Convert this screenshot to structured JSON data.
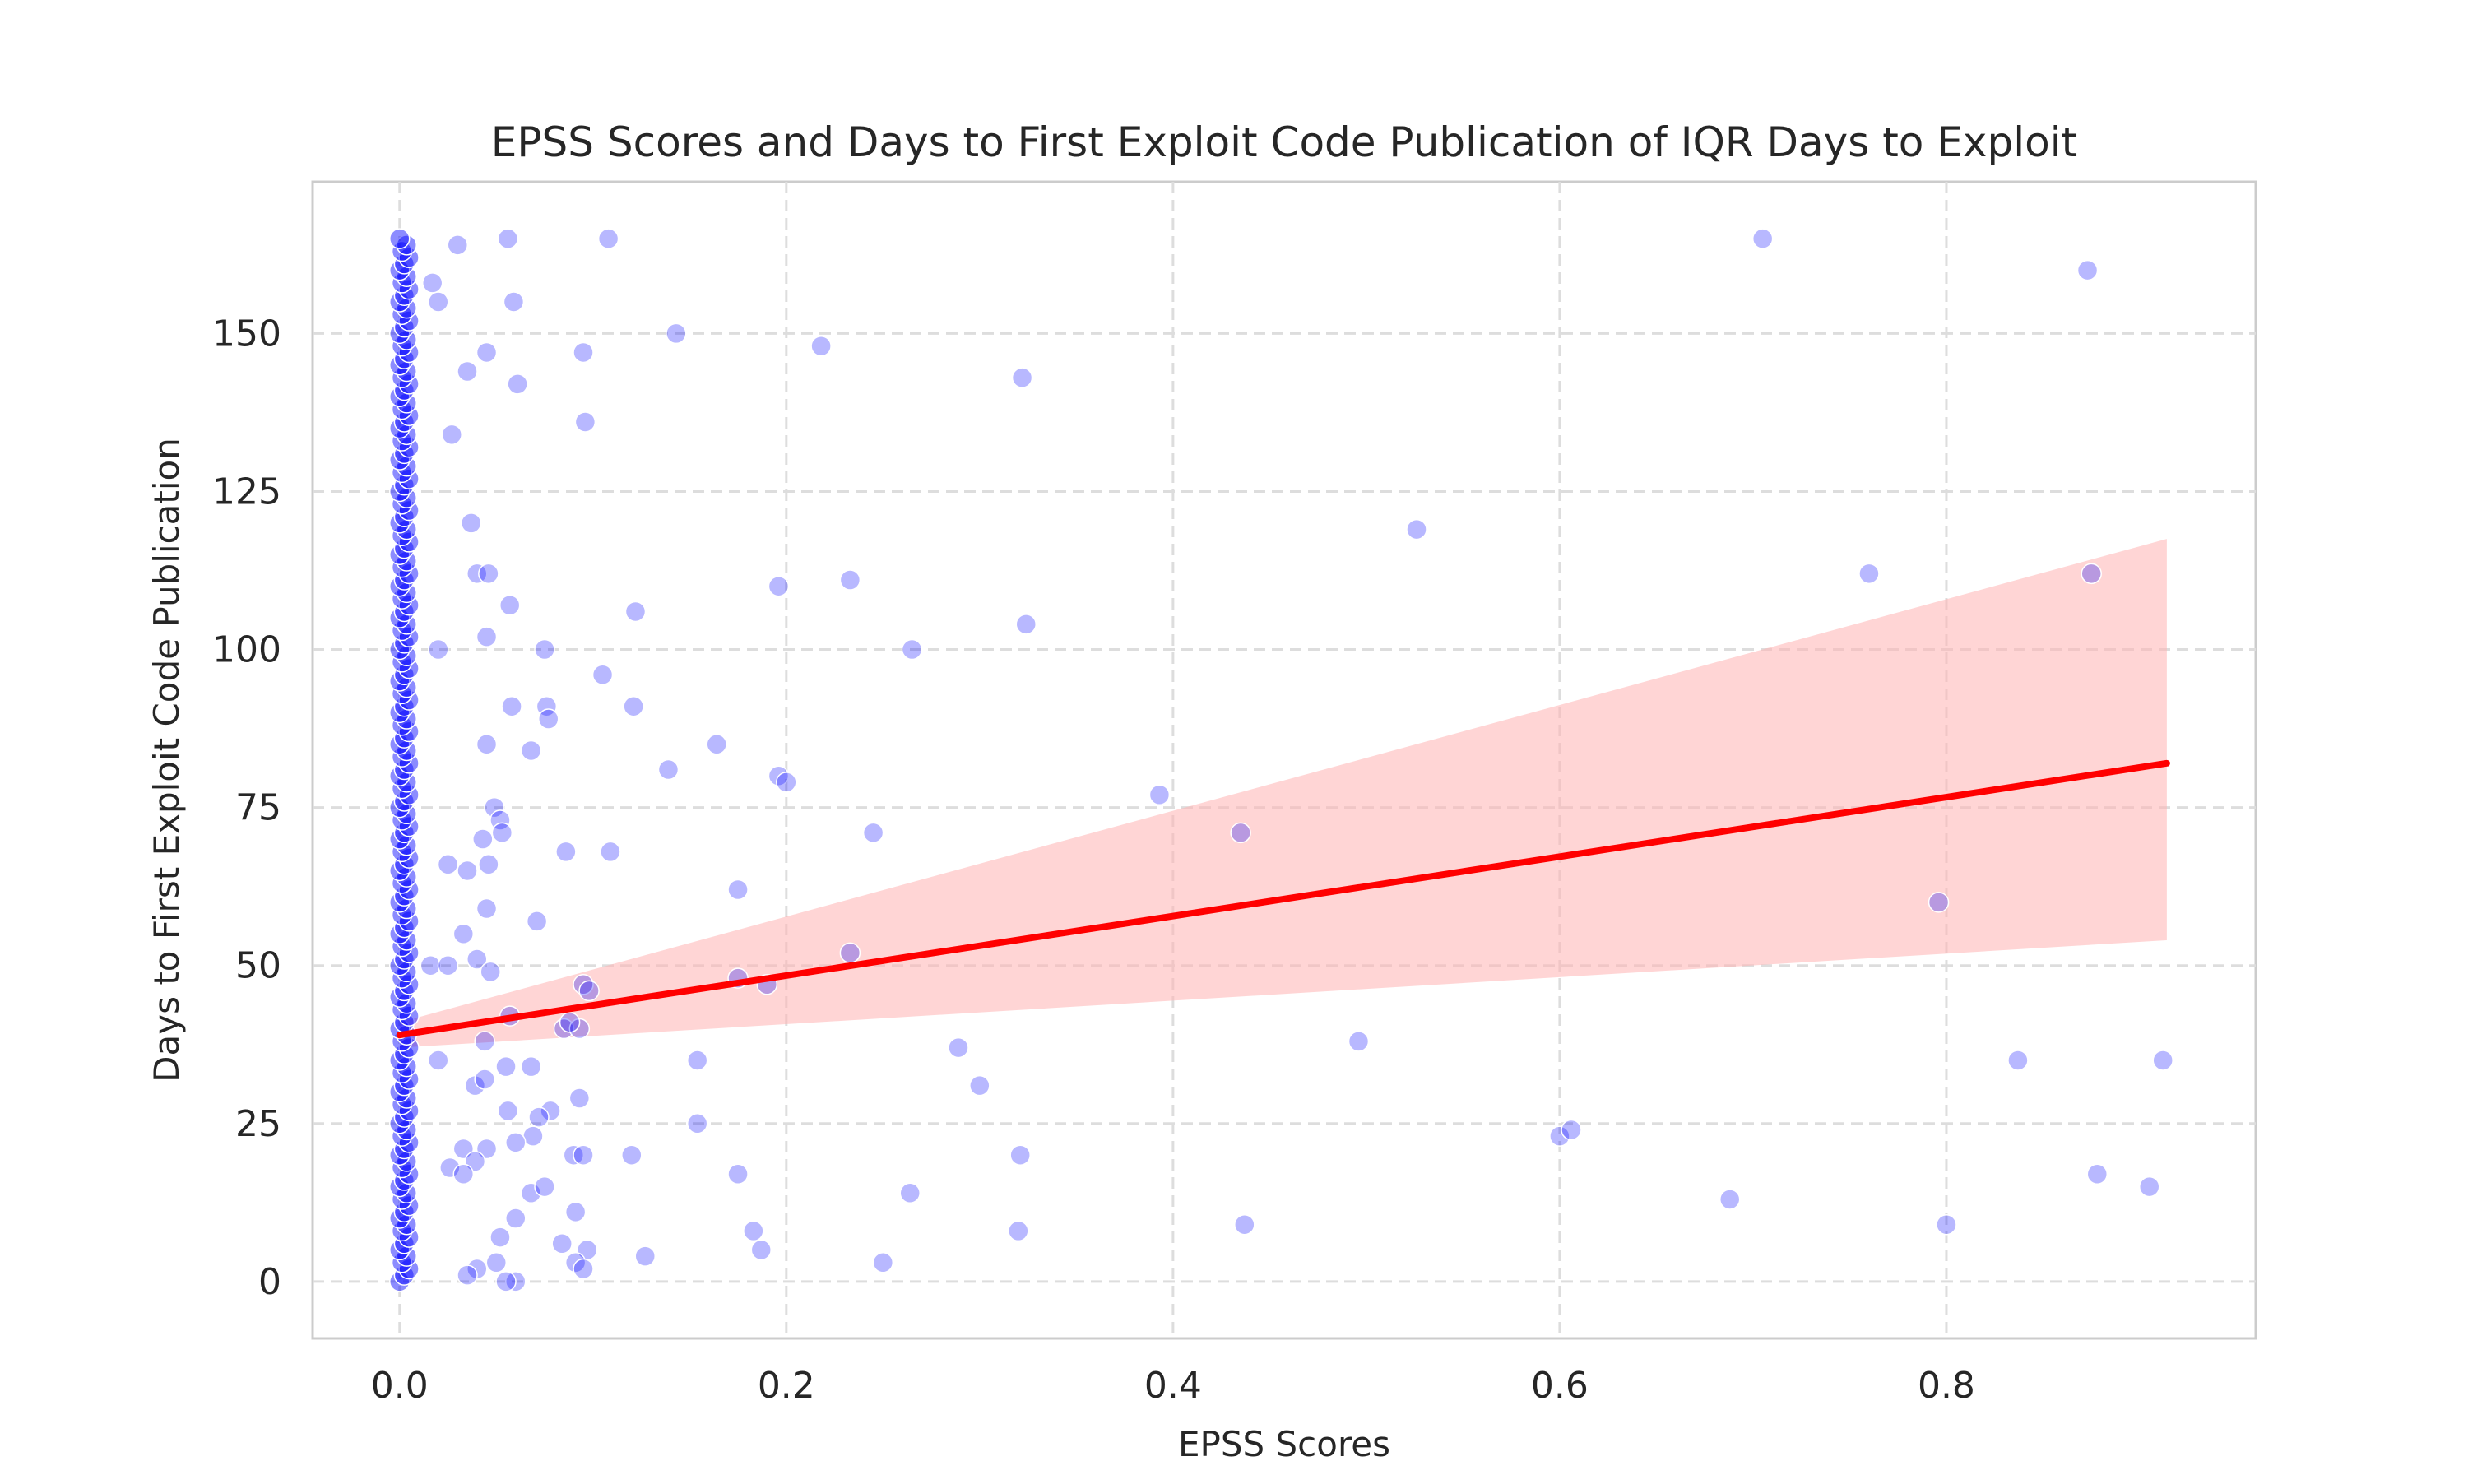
{
  "chart_data": {
    "type": "scatter",
    "title": "EPSS Scores and Days to First Exploit Code Publication of IQR Days to Exploit",
    "xlabel": "EPSS Scores",
    "ylabel": "Days to First Exploit Code Publication",
    "xlim": [
      -0.045,
      0.96
    ],
    "ylim": [
      -9,
      174
    ],
    "xticks": [
      0.0,
      0.2,
      0.4,
      0.6,
      0.8
    ],
    "xtick_labels": [
      "0.0",
      "0.2",
      "0.4",
      "0.6",
      "0.8"
    ],
    "yticks": [
      0,
      25,
      50,
      75,
      100,
      125,
      150
    ],
    "ytick_labels": [
      "0",
      "25",
      "50",
      "75",
      "100",
      "125",
      "150"
    ],
    "grid": true,
    "legend": "none",
    "colors": {
      "points": "#0000ff",
      "regression_line": "#ff0000",
      "confidence_band": "#ffb3b3"
    },
    "regression": {
      "x": [
        0.0,
        0.914
      ],
      "y": [
        39,
        82
      ]
    },
    "confidence_band": {
      "x": [
        0.0,
        0.914
      ],
      "upper": [
        41,
        117.5
      ],
      "lower": [
        37,
        54
      ]
    },
    "points": {
      "x": [
        0.056,
        0.108,
        0.705,
        0.873,
        0.017,
        0.02,
        0.03,
        0.059,
        0.045,
        0.095,
        0.143,
        0.218,
        0.322,
        0.035,
        0.061,
        0.096,
        0.027,
        0.037,
        0.526,
        0.04,
        0.046,
        0.196,
        0.233,
        0.76,
        0.875,
        0.122,
        0.02,
        0.045,
        0.057,
        0.075,
        0.265,
        0.324,
        0.105,
        0.076,
        0.077,
        0.121,
        0.058,
        0.045,
        0.068,
        0.164,
        0.139,
        0.196,
        0.2,
        0.049,
        0.052,
        0.053,
        0.393,
        0.435,
        0.245,
        0.025,
        0.086,
        0.109,
        0.035,
        0.046,
        0.043,
        0.175,
        0.071,
        0.796,
        0.045,
        0.033,
        0.04,
        0.047,
        0.233,
        0.016,
        0.025,
        0.095,
        0.098,
        0.175,
        0.19,
        0.057,
        0.085,
        0.093,
        0.088,
        0.044,
        0.289,
        0.154,
        0.496,
        0.837,
        0.912,
        0.02,
        0.055,
        0.068,
        0.039,
        0.044,
        0.3,
        0.056,
        0.078,
        0.072,
        0.069,
        0.154,
        0.093,
        0.12,
        0.09,
        0.033,
        0.06,
        0.045,
        0.039,
        0.026,
        0.033,
        0.068,
        0.321,
        0.6,
        0.606,
        0.095,
        0.264,
        0.175,
        0.878,
        0.905,
        0.688,
        0.075,
        0.091,
        0.06,
        0.183,
        0.437,
        0.32,
        0.8,
        0.052,
        0.084,
        0.187,
        0.097,
        0.127,
        0.25,
        0.091,
        0.05,
        0.04,
        0.035,
        0.06,
        0.095,
        0.055
      ],
      "y": [
        165,
        165,
        165,
        160,
        158,
        155,
        164,
        155,
        147,
        147,
        150,
        148,
        143,
        144,
        142,
        136,
        134,
        120,
        119,
        112,
        112,
        110,
        111,
        112,
        112,
        106,
        100,
        102,
        107,
        100,
        100,
        104,
        96,
        91,
        89,
        91,
        91,
        85,
        84,
        85,
        81,
        80,
        79,
        75,
        73,
        71,
        77,
        71,
        71,
        66,
        68,
        68,
        65,
        66,
        70,
        62,
        57,
        60,
        59,
        55,
        51,
        49,
        52,
        50,
        50,
        47,
        46,
        48,
        47,
        42,
        40,
        40,
        41,
        38,
        37,
        35,
        38,
        35,
        35,
        35,
        34,
        34,
        31,
        32,
        31,
        27,
        27,
        26,
        23,
        25,
        29,
        20,
        20,
        21,
        22,
        21,
        19,
        18,
        17,
        14,
        20,
        23,
        24,
        20,
        14,
        17,
        17,
        15,
        13,
        15,
        11,
        10,
        8,
        9,
        8,
        9,
        7,
        6,
        5,
        5,
        4,
        3,
        3,
        3,
        2,
        1,
        0,
        2,
        0
      ]
    }
  }
}
